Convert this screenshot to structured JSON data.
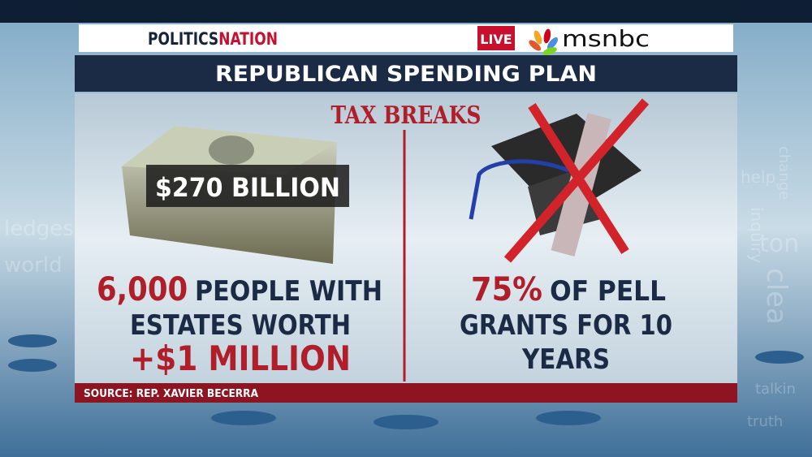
{
  "header": {
    "show_part1": "POLITICS",
    "show_part2": "NATION",
    "live": "LIVE",
    "network": "msnbc"
  },
  "title": "REPUBLICAN SPENDING PLAN",
  "subtitle": "TAX BREAKS",
  "left": {
    "badge": "$270 BILLION",
    "number": "6,000",
    "line1": "PEOPLE WITH",
    "line2": "ESTATES WORTH",
    "line3": "+$1 MILLION"
  },
  "right": {
    "number": "75%",
    "line1": "OF PELL",
    "line2": "GRANTS FOR 10",
    "line3": "YEARS"
  },
  "source": "SOURCE: REP. XAVIER BECERRA",
  "background_words": [
    "ledges",
    "world",
    "help",
    "change",
    "inquiry",
    "ton",
    "clea",
    "talkin",
    "truth"
  ]
}
